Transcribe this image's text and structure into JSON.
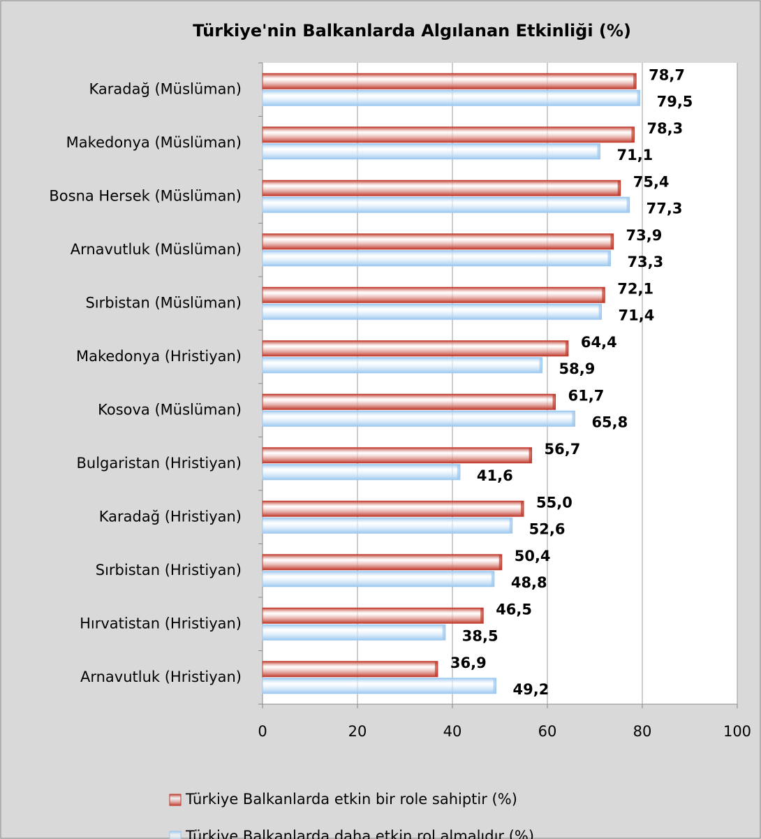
{
  "chart_data": {
    "type": "hbar",
    "title": "Türkiye'nin Balkanlarda Algılanan Etkinliği (%)",
    "categories": [
      "Karadağ (Müslüman)",
      "Makedonya (Müslüman)",
      "Bosna Hersek (Müslüman)",
      "Arnavutluk (Müslüman)",
      "Sırbistan (Müslüman)",
      "Makedonya (Hristiyan)",
      "Kosova  (Müslüman)",
      "Bulgaristan (Hristiyan)",
      "Karadağ (Hristiyan)",
      "Sırbistan (Hristiyan)",
      "Hırvatistan (Hristiyan)",
      "Arnavutluk (Hristiyan)"
    ],
    "series": [
      {
        "name": "Türkiye Balkanlarda etkin bir role sahiptir (%)",
        "color": "#c0392b",
        "values": [
          78.7,
          78.3,
          75.4,
          73.9,
          72.1,
          64.4,
          61.7,
          56.7,
          55.0,
          50.4,
          46.5,
          36.9
        ],
        "value_labels": [
          "78,7",
          "78,3",
          "75,4",
          "73,9",
          "72,1",
          "64,4",
          "61,7",
          "56,7",
          "55,0",
          "50,4",
          "46,5",
          "36,9"
        ]
      },
      {
        "name": "Türkiye Balkanlarda daha etkin rol almalıdır (%)",
        "color": "#9cc8f0",
        "values": [
          79.5,
          71.1,
          77.3,
          73.3,
          71.4,
          58.9,
          65.8,
          41.6,
          52.6,
          48.8,
          38.5,
          49.2
        ],
        "value_labels": [
          "79,5",
          "71,1",
          "77,3",
          "73,3",
          "71,4",
          "58,9",
          "65,8",
          "41,6",
          "52,6",
          "48,8",
          "38,5",
          "49,2"
        ]
      }
    ],
    "xlim": [
      0,
      100
    ],
    "xticks": [
      0,
      20,
      40,
      60,
      80,
      100
    ],
    "grid": true
  }
}
